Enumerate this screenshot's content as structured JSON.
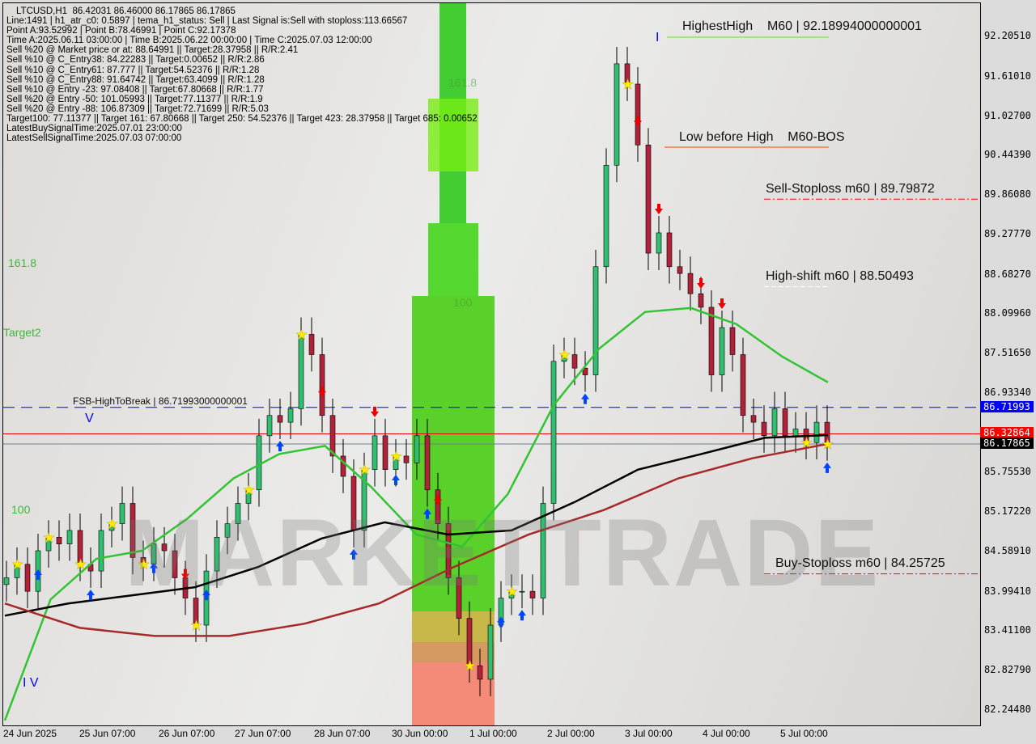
{
  "header": {
    "lines": [
      "LTCUSD,H1  86.42031 86.46000 86.17865 86.17865",
      "Line:1491 | h1_atr_c0: 0.5897 | tema_h1_status: Sell | Last Signal is:Sell with stoploss:113.66567",
      "Point A:93.52992 | Point B:78.46991 | Point C:92.17378",
      "Time A:2025.06.11 03:00:00 | Time B:2025.06.22 00:00:00 | Time C:2025.07.03 12:00:00",
      "Sell %20 @ Market price or at: 88.64991 || Target:28.37958 || R/R:2.41",
      "Sell %10 @ C_Entry38: 84.22283 || Target:0.00652 || R/R:2.86",
      "Sell %10 @ C_Entry61: 87.777 || Target:54.52376 || R/R:1.28",
      "Sell %10 @ C_Entry88: 91.64742 || Target:63.4099 || R/R:1.28",
      "Sell %10 @ Entry -23: 97.08408 || Target:67.80668 || R/R:1.77",
      "Sell %20 @ Entry -50: 101.05993 || Target:77.11377 || R/R:1.9",
      "Sell %20 @ Entry -88: 106.87309 || Target:72.71699 || R/R:5.03",
      "Target100: 77.11377 || Target 161: 67.80668 || Target 250: 54.52376 || Target 423: 28.37958 || Target 685: 0.00652",
      "LatestBuySignalTime:2025.07.01 23:00:00",
      "LatestSellSignalTime:2025.07.03 07:00:00"
    ]
  },
  "annotations": {
    "highest_high": "HighestHigh    M60 | 92.18994000000001",
    "low_before_high": "Low before High    M60-BOS",
    "sell_stoploss": "Sell-Stoploss m60 | 89.79872",
    "high_shift": "High-shift m60 | 88.50493",
    "buy_stoploss": "Buy-Stoploss m60 | 84.25725",
    "fsb": "FSB-HighToBreak | 86.71993000000001",
    "fib_161_left": "161.8",
    "target2": "Target2",
    "fib_100_left": "100",
    "fib_161_zone": "161.8",
    "fib_100_zone": "100",
    "v_mark": "V",
    "iv_mark": "I V",
    "i_mark": "I",
    "watermark": "MARKETTRADE"
  },
  "chart_data": {
    "type": "candlestick",
    "symbol": "LTCUSD",
    "timeframe": "H1",
    "ylim": [
      82.0,
      92.5
    ],
    "grid": false,
    "y_ticks": [
      "92.20510",
      "91.61010",
      "91.02700",
      "90.44390",
      "89.86080",
      "89.27770",
      "88.68270",
      "88.09960",
      "87.51650",
      "86.93340",
      "85.75530",
      "85.17220",
      "84.58910",
      "83.99410",
      "83.41100",
      "82.82790",
      "82.24480"
    ],
    "x_ticks": [
      "24 Jun 2025",
      "25 Jun 07:00",
      "26 Jun 07:00",
      "27 Jun 07:00",
      "28 Jun 07:00",
      "30 Jun 00:00",
      "1 Jul 00:00",
      "2 Jul 00:00",
      "3 Jul 00:00",
      "4 Jul 00:00",
      "5 Jul 00:00"
    ],
    "close": [
      84.2,
      84.4,
      84.0,
      84.6,
      84.8,
      84.7,
      84.9,
      84.4,
      84.3,
      84.9,
      85.0,
      85.3,
      84.5,
      84.4,
      84.7,
      84.6,
      84.2,
      83.9,
      83.5,
      84.3,
      84.8,
      85.0,
      85.3,
      85.5,
      86.3,
      86.6,
      86.5,
      86.7,
      87.8,
      87.5,
      86.6,
      86.0,
      85.7,
      84.9,
      85.8,
      86.3,
      85.8,
      86.0,
      85.9,
      86.3,
      85.5,
      85.0,
      84.2,
      83.6,
      82.9,
      82.7,
      83.5,
      83.9,
      84.0,
      84.0,
      83.9,
      85.3,
      87.4,
      87.5,
      87.3,
      87.2,
      88.8,
      90.3,
      91.8,
      91.5,
      90.6,
      89.0,
      89.3,
      88.8,
      88.7,
      88.4,
      88.2,
      87.2,
      87.9,
      87.5,
      86.6,
      86.5,
      86.3,
      86.7,
      86.3,
      86.4,
      86.2,
      86.5,
      86.18
    ],
    "series": [
      {
        "color": "#33c433",
        "values": [
          82.09,
          83.88,
          84.48,
          84.6,
          85.08,
          85.67,
          86.03,
          86.15,
          85.55,
          84.84,
          84.66,
          85.44,
          86.75,
          87.59,
          88.13,
          88.19,
          87.95,
          87.47,
          87.09
        ]
      },
      {
        "color": "#000000",
        "values": [
          83.64,
          83.82,
          83.94,
          84.06,
          84.36,
          84.78,
          85.02,
          84.84,
          84.9,
          85.32,
          85.8,
          86.03,
          86.27,
          86.31
        ]
      },
      {
        "color": "#a52a2a",
        "values": [
          83.82,
          83.46,
          83.34,
          83.34,
          83.52,
          83.82,
          84.36,
          84.84,
          85.2,
          85.67,
          85.97,
          86.18
        ]
      }
    ],
    "levels": [
      {
        "name": "fsb-high-to-break",
        "price": 86.71993,
        "color": "#0000ff",
        "label": "86.71993"
      },
      {
        "name": "bid",
        "price": 86.32864,
        "color": "#ff0000",
        "label": "86.32864"
      },
      {
        "name": "last",
        "price": 86.17865,
        "color": "#000000",
        "label": "86.17865"
      },
      {
        "name": "sell-stoploss",
        "price": 89.79872,
        "color": "#ff0000"
      },
      {
        "name": "buy-stoploss",
        "price": 84.25725,
        "color": "#ff0000"
      },
      {
        "name": "highest-high",
        "price": 92.18994,
        "color": "#66dd22"
      },
      {
        "name": "low-before-high",
        "price": 90.6,
        "color": "#ff4400"
      },
      {
        "name": "high-shift",
        "price": 88.50493,
        "color": "#ffffff"
      }
    ],
    "buy_signals": [
      3,
      8,
      14,
      19,
      26,
      33,
      37,
      40,
      47,
      49,
      55,
      78
    ],
    "sell_signals": [
      17,
      30,
      35,
      41,
      60,
      62,
      66,
      68
    ],
    "stars": [
      1,
      4,
      7,
      10,
      13,
      18,
      23,
      28,
      34,
      37,
      44,
      48,
      53,
      59,
      76,
      78
    ]
  }
}
